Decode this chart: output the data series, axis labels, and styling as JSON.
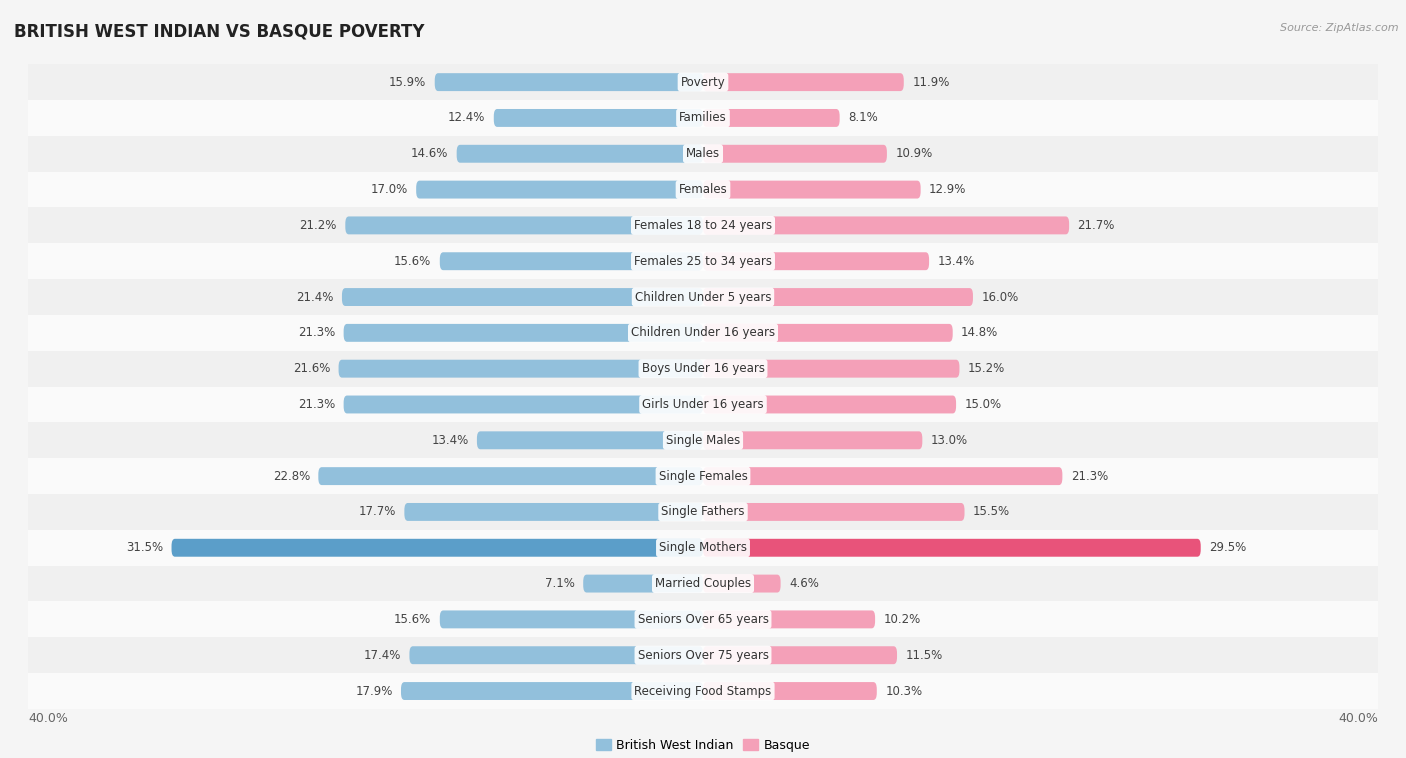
{
  "title": "BRITISH WEST INDIAN VS BASQUE POVERTY",
  "source": "Source: ZipAtlas.com",
  "categories": [
    "Poverty",
    "Families",
    "Males",
    "Females",
    "Females 18 to 24 years",
    "Females 25 to 34 years",
    "Children Under 5 years",
    "Children Under 16 years",
    "Boys Under 16 years",
    "Girls Under 16 years",
    "Single Males",
    "Single Females",
    "Single Fathers",
    "Single Mothers",
    "Married Couples",
    "Seniors Over 65 years",
    "Seniors Over 75 years",
    "Receiving Food Stamps"
  ],
  "british_west_indian": [
    15.9,
    12.4,
    14.6,
    17.0,
    21.2,
    15.6,
    21.4,
    21.3,
    21.6,
    21.3,
    13.4,
    22.8,
    17.7,
    31.5,
    7.1,
    15.6,
    17.4,
    17.9
  ],
  "basque": [
    11.9,
    8.1,
    10.9,
    12.9,
    21.7,
    13.4,
    16.0,
    14.8,
    15.2,
    15.0,
    13.0,
    21.3,
    15.5,
    29.5,
    4.6,
    10.2,
    11.5,
    10.3
  ],
  "bwi_color": "#92C0DC",
  "basque_color": "#F4A0B8",
  "bwi_highlight_color": "#5B9EC9",
  "basque_highlight_color": "#E8537A",
  "background_color": "#f5f5f5",
  "row_color_even": "#f0f0f0",
  "row_color_odd": "#fafafa",
  "axis_max": 40.0,
  "bar_height": 0.5,
  "legend_bwi": "British West Indian",
  "legend_basque": "Basque",
  "label_fontsize": 8.5,
  "category_fontsize": 8.5,
  "title_fontsize": 12
}
